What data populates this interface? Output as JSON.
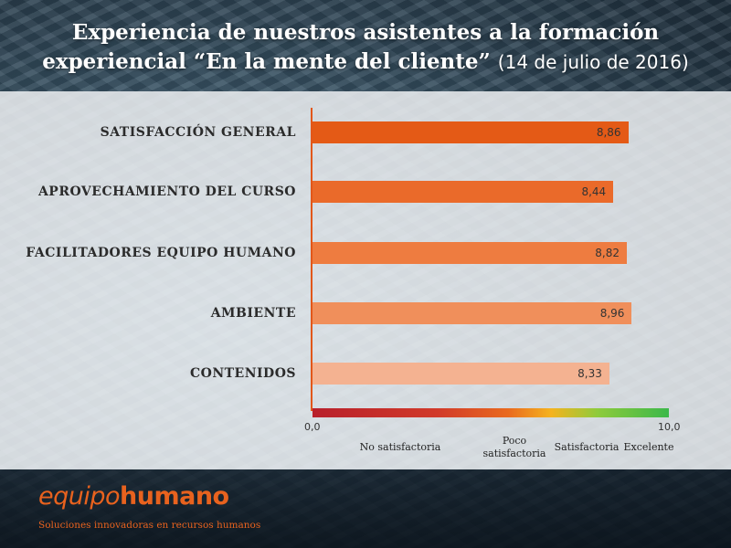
{
  "header": {
    "title_line1": "Experiencia de nuestros asistentes a la formación",
    "title_line2": "experiencial “En la mente del cliente”",
    "title_date": "(14 de julio de 2016)"
  },
  "chart_data": {
    "type": "bar",
    "orientation": "horizontal",
    "categories": [
      "SATISFACCIÓN GENERAL",
      "APROVECHAMIENTO DEL CURSO",
      "FACILITADORES EQUIPO HUMANO",
      "AMBIENTE",
      "CONTENIDOS"
    ],
    "values": [
      8.86,
      8.44,
      8.82,
      8.96,
      8.33
    ],
    "value_labels": [
      "8,86",
      "8,44",
      "8,82",
      "8,96",
      "8,33"
    ],
    "bar_colors": [
      "#e45a16",
      "#ea6a2a",
      "#ee7c40",
      "#f08f5b",
      "#f4b291"
    ],
    "xlim": [
      0,
      10
    ],
    "x_tick_labels": [
      "0,0",
      "10,0"
    ],
    "scale_labels": [
      "No satisfactoria",
      "Poco\nsatisfactoria",
      "Satisfactoria",
      "Excelente"
    ],
    "grid": false
  },
  "footer": {
    "logo_part1": "equipo",
    "logo_part2": "humano",
    "tagline": "Soluciones innovadoras en recursos humanos",
    "brand_color": "#e8621e"
  }
}
